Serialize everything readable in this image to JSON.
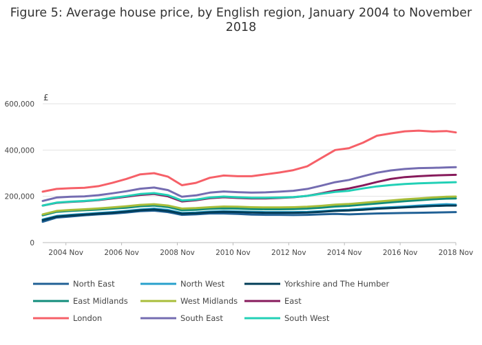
{
  "chart_data": {
    "type": "line",
    "title": "Figure 5: Average house price, by English region, January 2004 to November 2018",
    "ylabel": "£",
    "xlabel": "",
    "x_ticks": [
      "2004 Nov",
      "2006 Nov",
      "2008 Nov",
      "2010 Nov",
      "2012 Nov",
      "2014 Nov",
      "2016 Nov",
      "2018 Nov"
    ],
    "y_ticks": [
      "0",
      "200,000",
      "400,000",
      "600,000"
    ],
    "ylim": [
      0,
      600000
    ],
    "xlim": [
      "2004-01",
      "2018-11"
    ],
    "grid": true,
    "legend_position": "bottom",
    "dates": [
      "2004-01",
      "2004-07",
      "2005-01",
      "2005-07",
      "2006-01",
      "2006-07",
      "2007-01",
      "2007-07",
      "2008-01",
      "2008-07",
      "2009-01",
      "2009-07",
      "2010-01",
      "2010-07",
      "2011-01",
      "2011-07",
      "2012-01",
      "2012-07",
      "2013-01",
      "2013-07",
      "2014-01",
      "2014-07",
      "2015-01",
      "2015-07",
      "2016-01",
      "2016-07",
      "2017-01",
      "2017-07",
      "2018-01",
      "2018-07",
      "2018-11"
    ],
    "series": [
      {
        "name": "North East",
        "color": "#206095",
        "values": [
          90000,
          108000,
          113000,
          118000,
          122000,
          125000,
          130000,
          136000,
          138000,
          132000,
          120000,
          122000,
          126000,
          126000,
          124000,
          121000,
          120000,
          120000,
          119000,
          120000,
          122000,
          124000,
          122000,
          124000,
          126000,
          127000,
          128000,
          129000,
          130000,
          131000,
          132000
        ]
      },
      {
        "name": "North West",
        "color": "#27a0cc",
        "values": [
          100000,
          115000,
          120000,
          124000,
          128000,
          132000,
          137000,
          143000,
          147000,
          141000,
          128000,
          130000,
          134000,
          136000,
          135000,
          133000,
          132000,
          132000,
          132000,
          133000,
          136000,
          140000,
          142000,
          146000,
          150000,
          153000,
          156000,
          160000,
          163000,
          166000,
          164000
        ]
      },
      {
        "name": "Yorkshire and The Humber",
        "color": "#003c57",
        "values": [
          97000,
          112000,
          117000,
          121000,
          125000,
          129000,
          134000,
          140000,
          143000,
          137000,
          125000,
          127000,
          131000,
          133000,
          132000,
          130000,
          129000,
          129000,
          129000,
          130000,
          133000,
          137000,
          139000,
          142000,
          146000,
          149000,
          152000,
          155000,
          158000,
          160000,
          160000
        ]
      },
      {
        "name": "East Midlands",
        "color": "#118c7b",
        "values": [
          118000,
          133000,
          137000,
          140000,
          143000,
          147000,
          151000,
          157000,
          160000,
          154000,
          140000,
          142000,
          146000,
          148000,
          147000,
          145000,
          144000,
          144000,
          145000,
          147000,
          151000,
          156000,
          159000,
          164000,
          169000,
          174000,
          179000,
          183000,
          187000,
          190000,
          191000
        ]
      },
      {
        "name": "West Midlands",
        "color": "#a8bd3a",
        "values": [
          122000,
          137000,
          141000,
          144000,
          148000,
          152000,
          157000,
          163000,
          166000,
          160000,
          147000,
          149000,
          153000,
          156000,
          155000,
          153000,
          152000,
          152000,
          153000,
          155000,
          159000,
          164000,
          167000,
          172000,
          177000,
          182000,
          187000,
          191000,
          195000,
          198000,
          199000
        ]
      },
      {
        "name": "East",
        "color": "#871a5b",
        "values": [
          160000,
          172000,
          176000,
          179000,
          184000,
          191000,
          198000,
          206000,
          210000,
          200000,
          178000,
          183000,
          192000,
          196000,
          193000,
          191000,
          191000,
          193000,
          196000,
          202000,
          213000,
          225000,
          234000,
          247000,
          262000,
          275000,
          283000,
          287000,
          290000,
          292000,
          293000
        ]
      },
      {
        "name": "London",
        "color": "#f66068",
        "values": [
          220000,
          232000,
          235000,
          237000,
          244000,
          258000,
          275000,
          295000,
          300000,
          285000,
          248000,
          258000,
          280000,
          290000,
          287000,
          287000,
          295000,
          303000,
          313000,
          330000,
          365000,
          400000,
          408000,
          432000,
          462000,
          472000,
          481000,
          484000,
          480000,
          482000,
          476000
        ]
      },
      {
        "name": "South East",
        "color": "#746cb1",
        "values": [
          180000,
          195000,
          198000,
          200000,
          205000,
          213000,
          222000,
          233000,
          238000,
          227000,
          198000,
          204000,
          216000,
          221000,
          218000,
          216000,
          217000,
          220000,
          224000,
          232000,
          246000,
          261000,
          271000,
          287000,
          302000,
          312000,
          318000,
          322000,
          323000,
          325000,
          326000
        ]
      },
      {
        "name": "South West",
        "color": "#22d0b6",
        "values": [
          160000,
          173000,
          177000,
          180000,
          185000,
          193000,
          201000,
          210000,
          214000,
          205000,
          182000,
          186000,
          195000,
          199000,
          196000,
          194000,
          194000,
          195000,
          197000,
          202000,
          211000,
          219000,
          224000,
          234000,
          243000,
          249000,
          253000,
          256000,
          258000,
          260000,
          261000
        ]
      }
    ]
  }
}
